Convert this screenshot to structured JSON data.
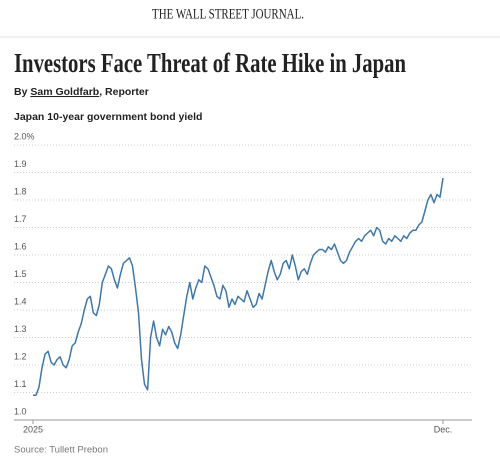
{
  "header": {
    "masthead": "THE WALL STREET JOURNAL.",
    "headline": "Investors Face Threat of Rate Hike in Japan",
    "byline": {
      "prefix": "By",
      "author": "Sam Goldfarb",
      "role": ", Reporter"
    }
  },
  "chart_data": {
    "type": "line",
    "title": "Japan 10-year government bond yield",
    "source": "Source: Tullett Prebon",
    "color": "#3f78a8",
    "grid": true,
    "ylim": [
      1,
      2
    ],
    "yticks": [
      {
        "value": 1,
        "label": "1.0"
      },
      1.1,
      1.2,
      1.3,
      1.4,
      1.5,
      1.6,
      1.7,
      1.8,
      1.9,
      {
        "value": 2,
        "label": "2.0%"
      }
    ],
    "categories": [
      "2025",
      null,
      null,
      null,
      null,
      null,
      null,
      null,
      null,
      null,
      null,
      null,
      null,
      null,
      null,
      null,
      null,
      null,
      null,
      null,
      null,
      null,
      null,
      null,
      null,
      null,
      null,
      null,
      null,
      null,
      null,
      null,
      null,
      null,
      null,
      null,
      null,
      null,
      null,
      null,
      null,
      null,
      null,
      null,
      null,
      null,
      null,
      null,
      null,
      null,
      null,
      null,
      null,
      null,
      null,
      null,
      null,
      null,
      null,
      null,
      null,
      null,
      null,
      null,
      null,
      null,
      null,
      null,
      null,
      null,
      null,
      null,
      null,
      null,
      null,
      null,
      null,
      null,
      null,
      null,
      null,
      null,
      null,
      null,
      null,
      null,
      null,
      null,
      null,
      null,
      null,
      null,
      null,
      null,
      null,
      null,
      null,
      null,
      null,
      null,
      null,
      null,
      null,
      null,
      null,
      null,
      null,
      null,
      null,
      null,
      null,
      null,
      null,
      null,
      null,
      null,
      null,
      null,
      null,
      null,
      null,
      null,
      null,
      null,
      null,
      null,
      null,
      null,
      null,
      null,
      null,
      null,
      null,
      null,
      null,
      null,
      "Dec."
    ],
    "values": [
      1.09,
      1.09,
      1.12,
      1.19,
      1.24,
      1.25,
      1.21,
      1.2,
      1.22,
      1.23,
      1.2,
      1.19,
      1.22,
      1.27,
      1.28,
      1.32,
      1.35,
      1.4,
      1.44,
      1.45,
      1.39,
      1.38,
      1.42,
      1.5,
      1.53,
      1.56,
      1.55,
      1.51,
      1.48,
      1.53,
      1.57,
      1.58,
      1.59,
      1.56,
      1.48,
      1.39,
      1.22,
      1.13,
      1.11,
      1.3,
      1.36,
      1.3,
      1.27,
      1.33,
      1.31,
      1.34,
      1.32,
      1.28,
      1.26,
      1.31,
      1.38,
      1.45,
      1.5,
      1.44,
      1.48,
      1.51,
      1.5,
      1.56,
      1.55,
      1.52,
      1.49,
      1.45,
      1.44,
      1.49,
      1.47,
      1.41,
      1.44,
      1.42,
      1.45,
      1.44,
      1.43,
      1.47,
      1.44,
      1.41,
      1.42,
      1.46,
      1.44,
      1.49,
      1.54,
      1.58,
      1.54,
      1.51,
      1.53,
      1.57,
      1.58,
      1.55,
      1.6,
      1.56,
      1.51,
      1.54,
      1.55,
      1.53,
      1.57,
      1.6,
      1.61,
      1.62,
      1.62,
      1.61,
      1.63,
      1.62,
      1.64,
      1.61,
      1.58,
      1.57,
      1.58,
      1.61,
      1.63,
      1.65,
      1.66,
      1.65,
      1.67,
      1.68,
      1.69,
      1.67,
      1.7,
      1.69,
      1.65,
      1.64,
      1.66,
      1.65,
      1.67,
      1.66,
      1.65,
      1.67,
      1.66,
      1.68,
      1.69,
      1.69,
      1.71,
      1.72,
      1.76,
      1.8,
      1.82,
      1.79,
      1.82,
      1.81,
      1.88
    ]
  }
}
